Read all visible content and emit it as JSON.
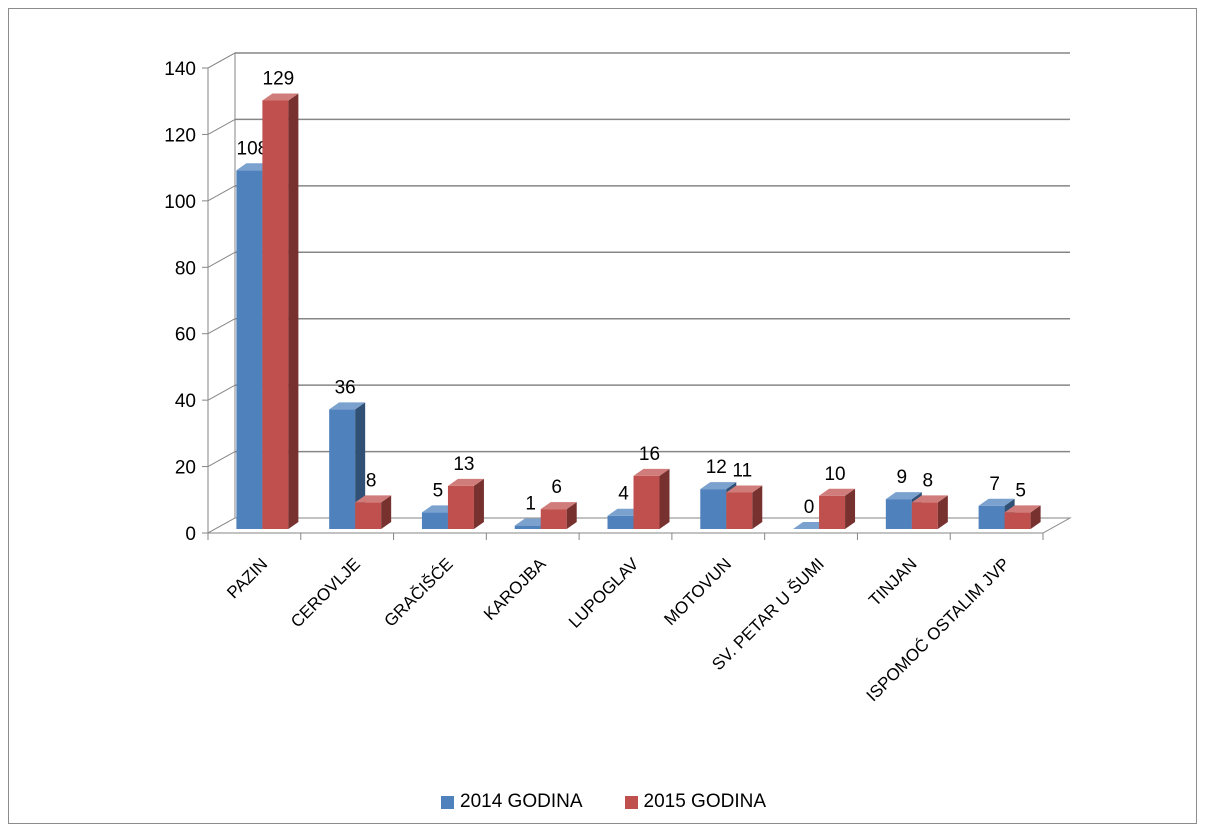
{
  "chart_data": {
    "type": "bar",
    "categories": [
      "PAZIN",
      "CEROVLJE",
      "GRAČIŠĆE",
      "KAROJBA",
      "LUPOGLAV",
      "MOTOVUN",
      "SV. PETAR U ŠUMI",
      "TINJAN",
      "ISPOMOĆ OSTALIM JVP"
    ],
    "series": [
      {
        "name": "2014 GODINA",
        "color": "#4f81bd",
        "values": [
          108,
          36,
          5,
          1,
          4,
          12,
          0,
          9,
          7
        ]
      },
      {
        "name": "2015 GODINA",
        "color": "#c0504d",
        "values": [
          129,
          8,
          13,
          6,
          16,
          11,
          10,
          8,
          5
        ]
      }
    ],
    "ylim": [
      0,
      140
    ],
    "yticks": [
      "0",
      "20",
      "40",
      "60",
      "80",
      "100",
      "120",
      "140"
    ],
    "grid": true,
    "legend_position": "bottom"
  }
}
